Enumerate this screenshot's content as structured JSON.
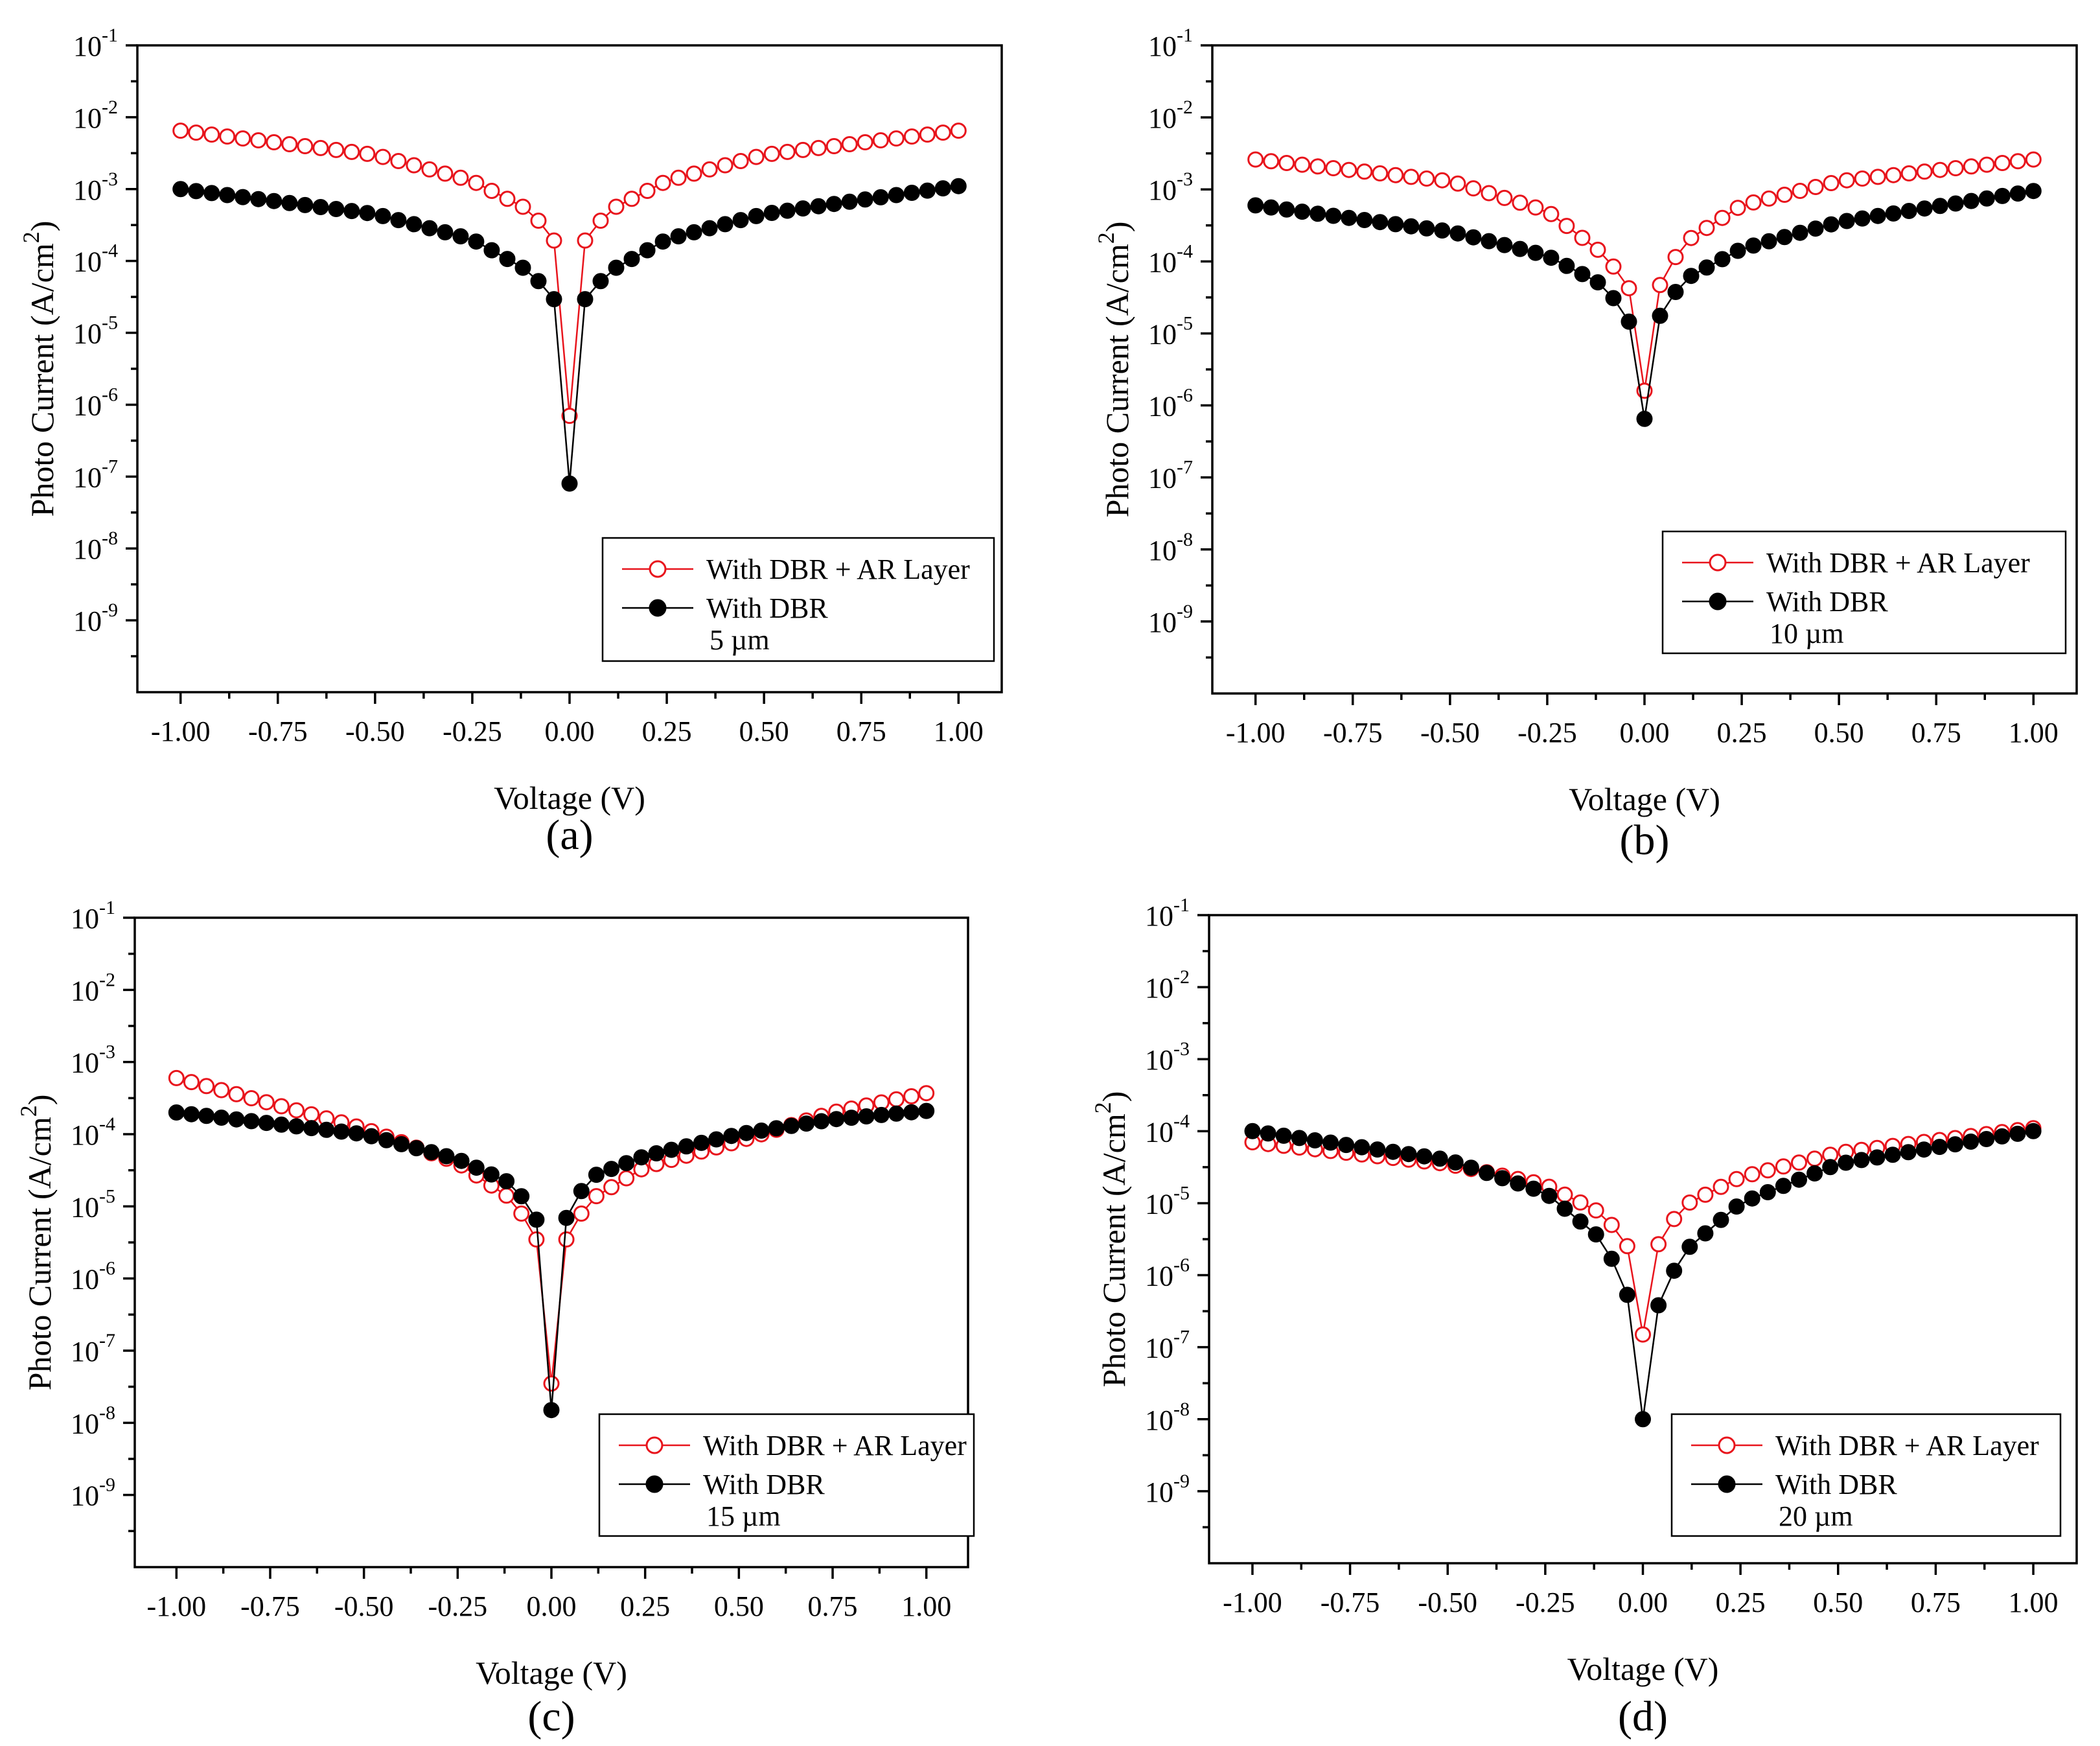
{
  "figure": {
    "x_label": "Voltage (V)",
    "y_label_main": "Photo Current (A/cm",
    "y_label_sup": "2",
    "y_label_tail": ")",
    "y_tick_base": "10",
    "series_names": [
      "With DBR + AR Layer",
      "With DBR"
    ],
    "series_colors": [
      "#e8141c",
      "#000000"
    ]
  },
  "chart_data": [
    {
      "panel": "(a)",
      "type": "scatter",
      "title": "",
      "xlabel": "Voltage (V)",
      "ylabel": "Photo Current (A/cm2)",
      "xlim": [
        -1.0,
        1.0
      ],
      "ylim": [
        1e-10,
        0.1
      ],
      "yscale": "log",
      "x_ticks": [
        "-1.00",
        "-0.75",
        "-0.50",
        "-0.25",
        "0.00",
        "0.25",
        "0.50",
        "0.75",
        "1.00"
      ],
      "y_tick_exponents": [
        "-1",
        "-2",
        "-3",
        "-4",
        "-5",
        "-6",
        "-7",
        "-8",
        "-9"
      ],
      "legend_annotation": "5 µm",
      "legend_position": "bottom-right",
      "series": [
        {
          "name": "With DBR + AR Layer",
          "marker": "open-circle",
          "points": [
            [
              -1.0,
              0.0065
            ],
            [
              -0.5,
              0.003
            ],
            [
              -0.25,
              0.0013
            ],
            [
              -0.1,
              0.0005
            ],
            [
              -0.02,
              0.00014
            ],
            [
              0.0,
              7e-07
            ],
            [
              0.02,
              0.00014
            ],
            [
              0.1,
              0.0005
            ],
            [
              0.25,
              0.0013
            ],
            [
              0.5,
              0.003
            ],
            [
              1.0,
              0.0065
            ]
          ]
        },
        {
          "name": "With DBR",
          "marker": "filled-circle",
          "points": [
            [
              -1.0,
              0.001
            ],
            [
              -0.5,
              0.00045
            ],
            [
              -0.25,
              0.0002
            ],
            [
              -0.1,
              7e-05
            ],
            [
              -0.02,
              2.2e-05
            ],
            [
              0.0,
              8e-08
            ],
            [
              0.02,
              2.2e-05
            ],
            [
              0.1,
              7e-05
            ],
            [
              0.25,
              0.0002
            ],
            [
              0.5,
              0.00045
            ],
            [
              1.0,
              0.0011
            ]
          ]
        }
      ]
    },
    {
      "panel": "(b)",
      "type": "scatter",
      "title": "",
      "xlabel": "Voltage (V)",
      "ylabel": "Photo Current (A/cm2)",
      "xlim": [
        -1.0,
        1.0
      ],
      "ylim": [
        1e-10,
        0.1
      ],
      "yscale": "log",
      "x_ticks": [
        "-1.00",
        "-0.75",
        "-0.50",
        "-0.25",
        "0.00",
        "0.25",
        "0.50",
        "0.75",
        "1.00"
      ],
      "y_tick_exponents": [
        "-1",
        "-2",
        "-3",
        "-4",
        "-5",
        "-6",
        "-7",
        "-8",
        "-9"
      ],
      "legend_annotation": "10 µm",
      "legend_position": "bottom-right",
      "series": [
        {
          "name": "With DBR + AR Layer",
          "marker": "open-circle",
          "points": [
            [
              -1.0,
              0.0026
            ],
            [
              -0.5,
              0.0013
            ],
            [
              -0.25,
              0.0005
            ],
            [
              -0.1,
              0.00012
            ],
            [
              -0.02,
              3e-05
            ],
            [
              0.0,
              1.6e-06
            ],
            [
              0.02,
              3e-05
            ],
            [
              0.1,
              0.00018
            ],
            [
              0.25,
              0.0006
            ],
            [
              0.5,
              0.0013
            ],
            [
              1.0,
              0.0026
            ]
          ]
        },
        {
          "name": "With DBR",
          "marker": "filled-circle",
          "points": [
            [
              -1.0,
              0.0006
            ],
            [
              -0.5,
              0.00026
            ],
            [
              -0.25,
              0.00012
            ],
            [
              -0.1,
              4.5e-05
            ],
            [
              -0.02,
              1e-05
            ],
            [
              0.0,
              6.5e-07
            ],
            [
              0.02,
              1.2e-05
            ],
            [
              0.1,
              5.5e-05
            ],
            [
              0.25,
              0.00015
            ],
            [
              0.5,
              0.00035
            ],
            [
              1.0,
              0.00095
            ]
          ]
        }
      ]
    },
    {
      "panel": "(c)",
      "type": "scatter",
      "title": "",
      "xlabel": "Voltage (V)",
      "ylabel": "Photo Current (A/cm2)",
      "xlim": [
        -1.0,
        1.0
      ],
      "ylim": [
        1e-10,
        0.1
      ],
      "yscale": "log",
      "x_ticks": [
        "-1.00",
        "-0.75",
        "-0.50",
        "-0.25",
        "0.00",
        "0.25",
        "0.50",
        "0.75",
        "1.00"
      ],
      "y_tick_exponents": [
        "-1",
        "-2",
        "-3",
        "-4",
        "-5",
        "-6",
        "-7",
        "-8",
        "-9"
      ],
      "legend_annotation": "15 µm",
      "legend_position": "bottom-right",
      "series": [
        {
          "name": "With DBR + AR Layer",
          "marker": "open-circle",
          "points": [
            [
              -1.0,
              0.0006
            ],
            [
              -0.5,
              0.00012
            ],
            [
              -0.25,
              4e-05
            ],
            [
              -0.1,
              1.2e-05
            ],
            [
              -0.02,
              2.3e-06
            ],
            [
              0.0,
              3.5e-08
            ],
            [
              0.02,
              2.3e-06
            ],
            [
              0.1,
              1.2e-05
            ],
            [
              0.25,
              3.5e-05
            ],
            [
              0.5,
              8e-05
            ],
            [
              0.75,
              0.0002
            ],
            [
              1.0,
              0.00037
            ]
          ]
        },
        {
          "name": "With DBR",
          "marker": "filled-circle",
          "points": [
            [
              -1.0,
              0.0002
            ],
            [
              -0.5,
              0.0001
            ],
            [
              -0.25,
              4.5e-05
            ],
            [
              -0.1,
              2e-05
            ],
            [
              -0.02,
              4.5e-06
            ],
            [
              0.0,
              1.5e-08
            ],
            [
              0.02,
              4.5e-06
            ],
            [
              0.1,
              2.5e-05
            ],
            [
              0.25,
              5e-05
            ],
            [
              0.5,
              0.0001
            ],
            [
              0.75,
              0.00016
            ],
            [
              1.0,
              0.00021
            ]
          ]
        }
      ]
    },
    {
      "panel": "(d)",
      "type": "scatter",
      "title": "",
      "xlabel": "Voltage (V)",
      "ylabel": "Photo Current (A/cm2)",
      "xlim": [
        -1.0,
        1.0
      ],
      "ylim": [
        1e-10,
        0.1
      ],
      "yscale": "log",
      "x_ticks": [
        "-1.00",
        "-0.75",
        "-0.50",
        "-0.25",
        "0.00",
        "0.25",
        "0.50",
        "0.75",
        "1.00"
      ],
      "y_tick_exponents": [
        "-1",
        "-2",
        "-3",
        "-4",
        "-5",
        "-6",
        "-7",
        "-8",
        "-9"
      ],
      "legend_annotation": "20 µm",
      "legend_position": "bottom-right",
      "series": [
        {
          "name": "With DBR + AR Layer",
          "marker": "open-circle",
          "points": [
            [
              -1.0,
              7e-05
            ],
            [
              -0.5,
              3.5e-05
            ],
            [
              -0.25,
              1.8e-05
            ],
            [
              -0.1,
              7e-06
            ],
            [
              -0.02,
              1.8e-06
            ],
            [
              0.0,
              1.5e-07
            ],
            [
              0.02,
              1.8e-06
            ],
            [
              0.1,
              9e-06
            ],
            [
              0.25,
              2.3e-05
            ],
            [
              0.5,
              5e-05
            ],
            [
              1.0,
              0.00011
            ]
          ]
        },
        {
          "name": "With DBR",
          "marker": "filled-circle",
          "points": [
            [
              -1.0,
              0.0001
            ],
            [
              -0.5,
              4e-05
            ],
            [
              -0.25,
              1.4e-05
            ],
            [
              -0.1,
              3e-06
            ],
            [
              -0.02,
              3e-07
            ],
            [
              0.0,
              1e-08
            ],
            [
              0.02,
              2.2e-07
            ],
            [
              0.1,
              2e-06
            ],
            [
              0.25,
              1e-05
            ],
            [
              0.5,
              3.5e-05
            ],
            [
              1.0,
              0.0001
            ]
          ]
        }
      ]
    }
  ]
}
